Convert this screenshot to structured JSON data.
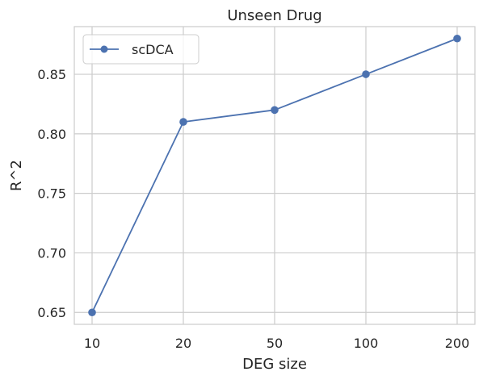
{
  "chart_data": {
    "type": "line",
    "title": "Unseen Drug",
    "xlabel": "DEG size",
    "ylabel": "R^2",
    "categories": [
      "10",
      "20",
      "50",
      "100",
      "200"
    ],
    "series": [
      {
        "name": "scDCA",
        "values": [
          0.65,
          0.81,
          0.82,
          0.85,
          0.88
        ],
        "color": "#4c72b0",
        "marker": "circle"
      }
    ],
    "yticks": [
      "0.65",
      "0.70",
      "0.75",
      "0.80",
      "0.85"
    ],
    "ylim": [
      0.64,
      0.89
    ],
    "grid": true,
    "legend_position": "top-left",
    "colors": {
      "grid": "#cccccc",
      "frame": "#cccccc",
      "background": "#ffffff"
    }
  }
}
